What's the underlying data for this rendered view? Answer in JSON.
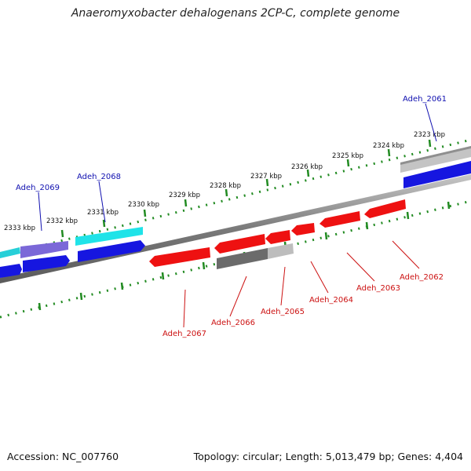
{
  "title": "Anaeromyxobacter dehalogenans 2CP-C, complete genome",
  "footer": {
    "accession": "Accession: NC_007760",
    "summary": "Topology: circular; Length: 5,013,479 bp; Genes: 4,404"
  },
  "ruler_labels": [
    "2323 kbp",
    "2324 kbp",
    "2325 kbp",
    "2326 kbp",
    "2327 kbp",
    "2328 kbp",
    "2329 kbp",
    "2330 kbp",
    "2331 kbp",
    "2332 kbp",
    "2333 kbp"
  ],
  "gene_labels": {
    "forward": [
      "Adeh_2061",
      "Adeh_2068",
      "Adeh_2069"
    ],
    "reverse": [
      "Adeh_2062",
      "Adeh_2063",
      "Adeh_2064",
      "Adeh_2065",
      "Adeh_2066",
      "Adeh_2067"
    ]
  },
  "colors": {
    "forward_label": "#1010b0",
    "reverse_label": "#cc1111",
    "ruler": "#228b22",
    "backbone": "#808080",
    "cds": "#0000ee",
    "rna": "#00e5e5",
    "reverse_gene": "#ff0000"
  }
}
